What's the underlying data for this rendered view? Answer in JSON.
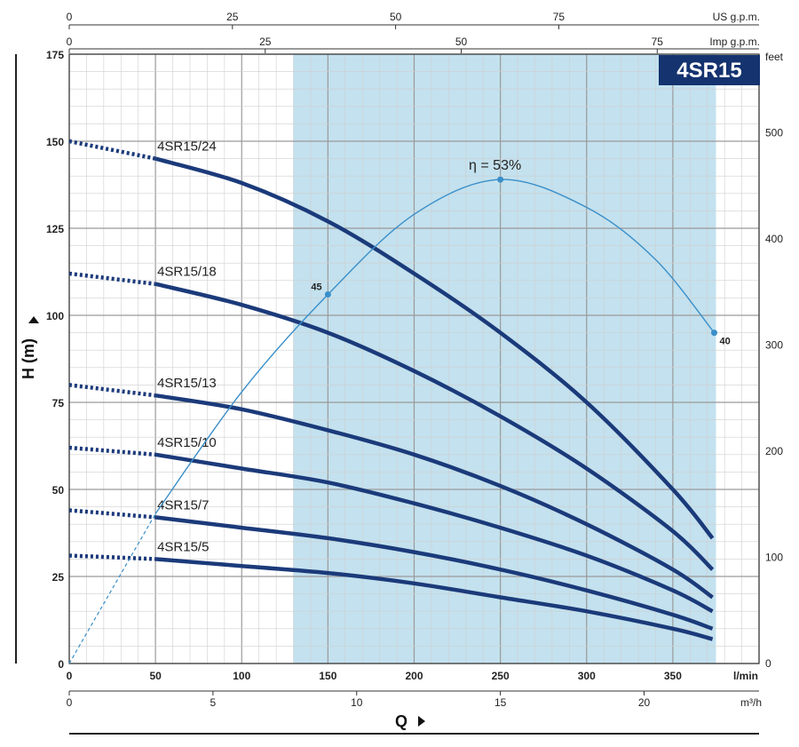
{
  "chart_data": {
    "type": "line",
    "title": "4SR15",
    "xlabel": "Q",
    "ylabel": "H (m)",
    "x_unit": "l/min",
    "xlim": [
      0,
      400
    ],
    "ylim": [
      0,
      175
    ],
    "x_ticks": [
      0,
      50,
      100,
      150,
      200,
      250,
      300,
      350
    ],
    "y_ticks": [
      0,
      25,
      50,
      75,
      100,
      125,
      150,
      175
    ],
    "secondary_axes": {
      "us_gpm": {
        "unit": "US g.p.m.",
        "ticks": [
          0,
          25,
          50,
          75
        ]
      },
      "imp_gpm": {
        "unit": "Imp g.p.m.",
        "ticks": [
          0,
          25,
          50,
          75
        ]
      },
      "feet": {
        "unit": "feet",
        "ticks": [
          0,
          100,
          200,
          300,
          400,
          500
        ]
      },
      "m3h": {
        "unit": "m³/h",
        "ticks": [
          0,
          5,
          10,
          15,
          20
        ]
      }
    },
    "operating_range": [
      130,
      375
    ],
    "series": [
      {
        "name": "4SR15/24",
        "x": [
          0,
          50,
          100,
          150,
          200,
          250,
          300,
          350,
          373
        ],
        "y": [
          150,
          145,
          138,
          127,
          112,
          95,
          75,
          50,
          36
        ]
      },
      {
        "name": "4SR15/18",
        "x": [
          0,
          50,
          100,
          150,
          200,
          250,
          300,
          350,
          373
        ],
        "y": [
          112,
          109,
          103,
          95,
          84,
          71,
          56,
          38,
          27
        ]
      },
      {
        "name": "4SR15/13",
        "x": [
          0,
          50,
          100,
          150,
          200,
          250,
          300,
          350,
          373
        ],
        "y": [
          80,
          77,
          73,
          67,
          60,
          51,
          40,
          27,
          19
        ]
      },
      {
        "name": "4SR15/10",
        "x": [
          0,
          50,
          100,
          150,
          200,
          250,
          300,
          350,
          373
        ],
        "y": [
          62,
          60,
          56,
          52,
          46,
          39,
          31,
          21,
          15
        ]
      },
      {
        "name": "4SR15/7",
        "x": [
          0,
          50,
          100,
          150,
          200,
          250,
          300,
          350,
          373
        ],
        "y": [
          44,
          42,
          39,
          36,
          32,
          27,
          21,
          14,
          10
        ]
      },
      {
        "name": "4SR15/5",
        "x": [
          0,
          50,
          100,
          150,
          200,
          250,
          300,
          350,
          373
        ],
        "y": [
          31,
          30,
          28,
          26,
          23,
          19,
          15,
          10,
          7
        ]
      }
    ],
    "efficiency": {
      "peak_label": "η = 53%",
      "points": [
        {
          "x": 150,
          "y": 106,
          "label": "45"
        },
        {
          "x": 250,
          "y": 139,
          "label": ""
        },
        {
          "x": 374,
          "y": 95,
          "label": "40"
        }
      ]
    }
  }
}
